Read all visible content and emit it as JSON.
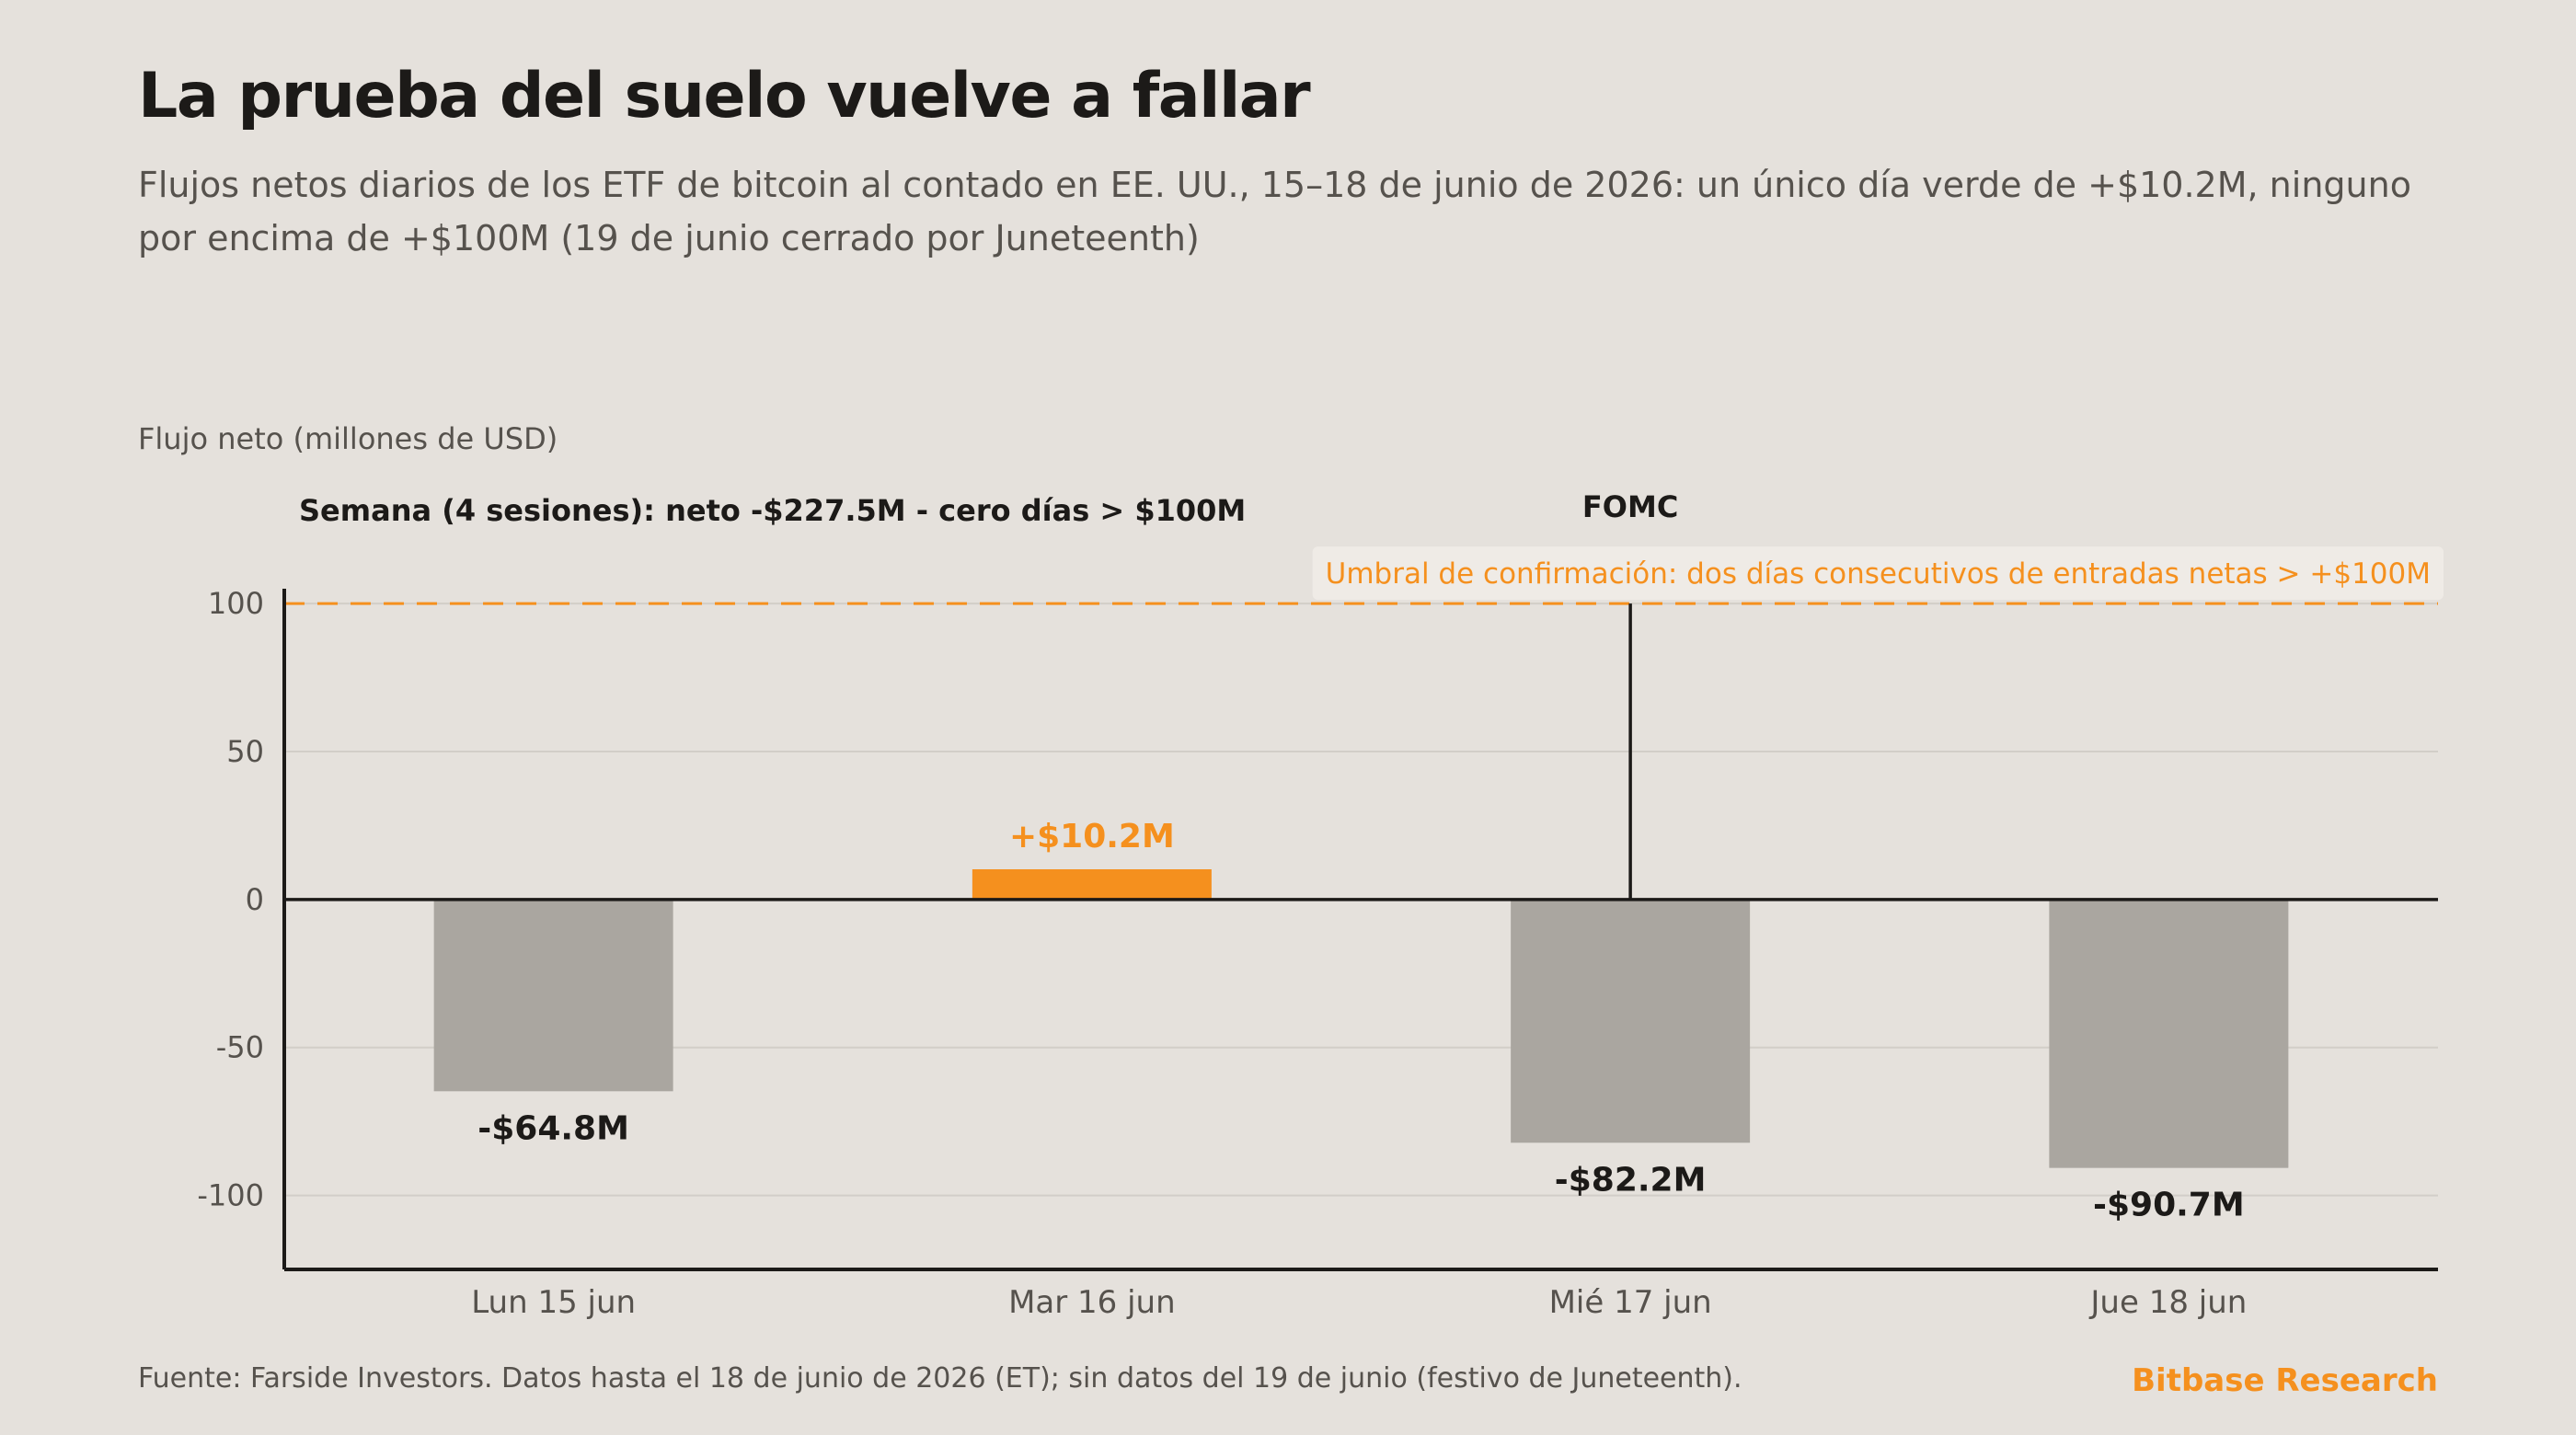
{
  "colors": {
    "background": "#e5e1dc",
    "title": "#1c1a18",
    "text": "#56524d",
    "neutral_bar": "#aaa6a0",
    "accent": "#f5901e",
    "axis": "#1c1a18",
    "grid": "#d2cec8",
    "threshold_label_bg": "#efebe6"
  },
  "chart_data": {
    "type": "bar",
    "title": "La prueba del suelo vuelve a fallar",
    "subtitle": "Flujos netos diarios de los ETF de bitcoin al contado en EE. UU., 15–18 de junio de 2026: un único día verde de +$10.2M, ninguno por encima de +$100M (19 de junio cerrado por Juneteenth)",
    "ylabel": "Flujo neto (millones de USD)",
    "xlabel": "",
    "categories": [
      "Lun 15 jun",
      "Mar 16 jun",
      "Mié 17 jun",
      "Jue 18 jun"
    ],
    "values": [
      -64.8,
      10.2,
      -82.2,
      -90.7
    ],
    "data_labels": [
      "-$64.8M",
      "+$10.2M",
      "-$82.2M",
      "-$90.7M"
    ],
    "highlighted": [
      false,
      true,
      false,
      false
    ],
    "ylim": [
      -125,
      105
    ],
    "yticks": [
      100,
      50,
      0,
      -50,
      -100
    ],
    "ytick_labels": [
      "100",
      "50",
      "0",
      "-50",
      "-100"
    ],
    "grid": true,
    "threshold": {
      "value": 100,
      "label": "Umbral de confirmación: dos días consecutivos de entradas netas > +$100M"
    },
    "event_marker": {
      "category": "Mié 17 jun",
      "label": "FOMC",
      "from": 0,
      "to": 100
    },
    "annotation": "Semana (4 sesiones): neto -$227.5M - cero días > $100M"
  },
  "footer": {
    "source": "Fuente: Farside Investors. Datos hasta el 18 de junio de 2026 (ET); sin datos del 19 de junio (festivo de Juneteenth).",
    "brand": "Bitbase Research"
  }
}
